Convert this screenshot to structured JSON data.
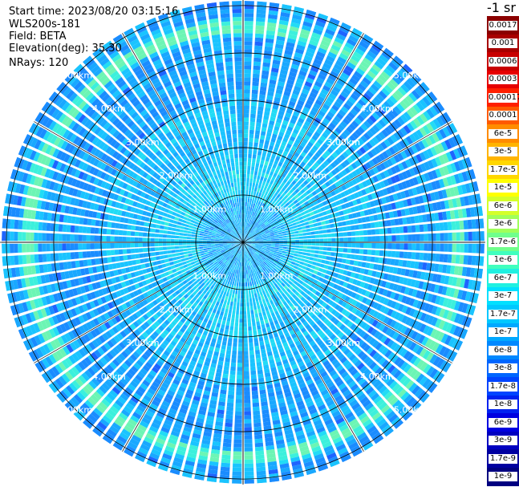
{
  "info": {
    "start_time": "Start time: 2023/08/20 03:15:16",
    "instrument": "WLS200s-181",
    "field": "Field: BETA",
    "elevation": "Elevation(deg): 35.30",
    "nrays": "NRays: 120"
  },
  "colorbar": {
    "units": "-1 sr",
    "labels": [
      "0.0017",
      "0.001",
      "0.0006",
      "0.0003",
      "0.00017",
      "0.0001",
      "6e-5",
      "3e-5",
      "1.7e-5",
      "1e-5",
      "6e-6",
      "3e-6",
      "1.7e-6",
      "1e-6",
      "6e-7",
      "3e-7",
      "1.7e-7",
      "1e-7",
      "6e-8",
      "3e-8",
      "1.7e-8",
      "1e-8",
      "6e-9",
      "3e-9",
      "1.7e-9",
      "1e-9"
    ],
    "colors": [
      "#8b0000",
      "#a80000",
      "#c80000",
      "#e60000",
      "#ff2000",
      "#ff5a00",
      "#ff8c00",
      "#ffb400",
      "#ffd700",
      "#ffff00",
      "#d4ff2a",
      "#a0ff5a",
      "#70ff8c",
      "#40ffbe",
      "#20f0e0",
      "#00e0ff",
      "#00c8ff",
      "#00a8ff",
      "#0088ff",
      "#0066ff",
      "#0044ff",
      "#0022f0",
      "#0000e0",
      "#0000c0",
      "#0000a0",
      "#000080"
    ]
  },
  "chart_data": {
    "type": "heatmap",
    "projection": "polar PPI scan",
    "n_rays": 120,
    "elevation_deg": 35.3,
    "range_rings": [
      {
        "range_km": 1.0,
        "label": "1.00km"
      },
      {
        "range_km": 2.0,
        "label": "2.00km"
      },
      {
        "range_km": 3.0,
        "label": "3.00km"
      },
      {
        "range_km": 4.0,
        "label": "4.00km"
      },
      {
        "range_km": 5.0,
        "label": "5.00km"
      }
    ],
    "max_range_km": 5.1,
    "azimuth_spokes_deg": [
      0,
      30,
      60,
      90,
      120,
      150,
      180,
      210,
      240,
      270,
      300,
      330
    ],
    "ring_label_azimuths_deg": [
      315,
      45,
      225,
      135
    ],
    "enhanced_layer": {
      "range_km": 4.55,
      "level": "1.7e-6 to 1e-5"
    },
    "background_level": "1e-8 to 1e-7",
    "grid": true
  }
}
